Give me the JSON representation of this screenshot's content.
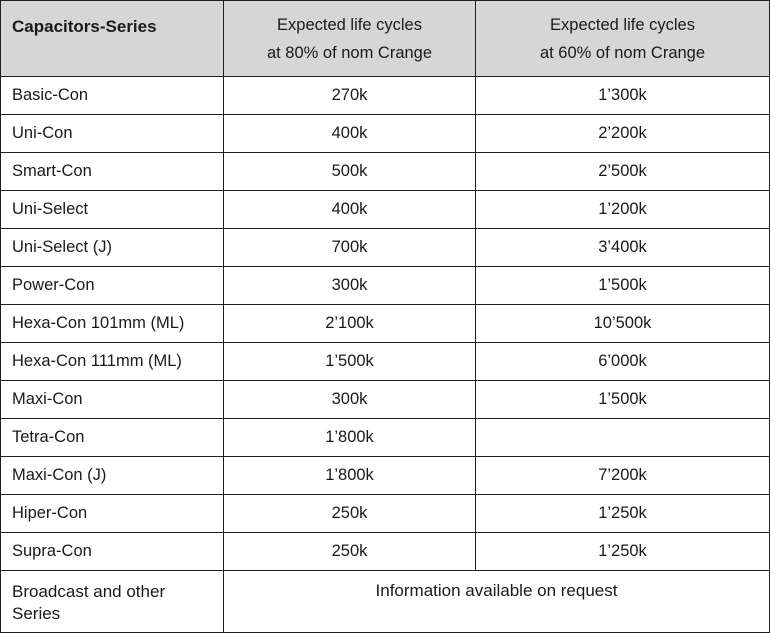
{
  "table": {
    "headers": {
      "series": "Capacitors-Series",
      "col80_line1": "Expected life cycles",
      "col80_line2": "at 80% of nom Crange",
      "col60_line1": "Expected life cycles",
      "col60_line2": "at 60% of nom Crange"
    },
    "rows": [
      {
        "series": "Basic-Con",
        "at80": "270k",
        "at60": "1’300k"
      },
      {
        "series": "Uni-Con",
        "at80": "400k",
        "at60": "2’200k"
      },
      {
        "series": "Smart-Con",
        "at80": "500k",
        "at60": "2’500k"
      },
      {
        "series": "Uni-Select",
        "at80": "400k",
        "at60": "1’200k"
      },
      {
        "series": "Uni-Select (J)",
        "at80": "700k",
        "at60": "3’400k"
      },
      {
        "series": "Power-Con",
        "at80": "300k",
        "at60": "1’500k"
      },
      {
        "series": "Hexa-Con 101mm (ML)",
        "at80": "2’100k",
        "at60": "10’500k"
      },
      {
        "series": "Hexa-Con 111mm (ML)",
        "at80": "1’500k",
        "at60": "6’000k"
      },
      {
        "series": "Maxi-Con",
        "at80": "300k",
        "at60": "1’500k"
      },
      {
        "series": "Tetra-Con",
        "at80": "1’800k",
        "at60": ""
      },
      {
        "series": "Maxi-Con (J)",
        "at80": "1’800k",
        "at60": "7’200k"
      },
      {
        "series": "Hiper-Con",
        "at80": "250k",
        "at60": "1’250k"
      },
      {
        "series": "Supra-Con",
        "at80": "250k",
        "at60": "1’250k"
      }
    ],
    "footer": {
      "series_line1": "Broadcast and other",
      "series_line2": "Series",
      "info": "Information available on request"
    }
  }
}
